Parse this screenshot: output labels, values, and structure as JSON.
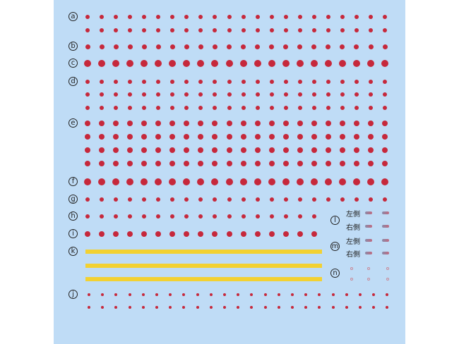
{
  "labels": {
    "a": "a",
    "b": "b",
    "c": "c",
    "d": "d",
    "e": "e",
    "f": "f",
    "g": "g",
    "h": "h",
    "i": "i",
    "k": "k",
    "j": "j",
    "l": "l",
    "m": "m",
    "n": "n"
  },
  "side_labels": {
    "left": "左側",
    "right": "右側"
  },
  "colors": {
    "background": "#bfdcf6",
    "dot": "#c6283b",
    "stripe": "#f2d132"
  }
}
